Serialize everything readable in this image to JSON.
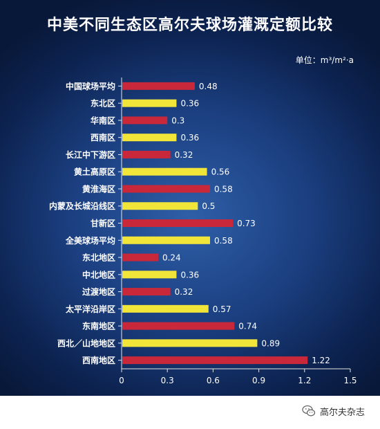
{
  "title": "中美不同生态区高尔夫球场灌溉定额比较",
  "unit": "单位：m³/m²·a",
  "brand": {
    "name": "高尔夫杂志",
    "icon": "wechat-logo-icon"
  },
  "colors": {
    "red": "#c8283a",
    "yellow": "#f2e53a",
    "axis": "#e6e6e6"
  },
  "chart_data": {
    "type": "bar",
    "orientation": "horizontal",
    "title": "中美不同生态区高尔夫球场灌溉定额比较",
    "xlabel": "",
    "ylabel": "",
    "xlim": [
      0,
      1.5
    ],
    "ticks": [
      "0",
      "0.3",
      "0.6",
      "0.9",
      "1.2",
      "1.5"
    ],
    "tick_values": [
      0,
      0.3,
      0.6,
      0.9,
      1.2,
      1.5
    ],
    "grid": false,
    "categories": [
      "中国球场平均",
      "东北区",
      "华南区",
      "西南区",
      "长江中下游区",
      "黄土高原区",
      "黄淮海区",
      "内蒙及长城沿线区",
      "甘新区",
      "全美球场平均",
      "东北地区",
      "中北地区",
      "过渡地区",
      "太平洋沿岸区",
      "东南地区",
      "西北／山地地区",
      "西南地区"
    ],
    "values": [
      0.48,
      0.36,
      0.3,
      0.36,
      0.32,
      0.56,
      0.58,
      0.5,
      0.73,
      0.58,
      0.24,
      0.36,
      0.32,
      0.57,
      0.74,
      0.89,
      1.22
    ],
    "value_labels": [
      "0.48",
      "0.36",
      "0.3",
      "0.36",
      "0.32",
      "0.56",
      "0.58",
      "0.5",
      "0.73",
      "0.58",
      "0.24",
      "0.36",
      "0.32",
      "0.57",
      "0.74",
      "0.89",
      "1.22"
    ],
    "bar_colors": [
      "red",
      "yellow",
      "red",
      "yellow",
      "red",
      "yellow",
      "red",
      "yellow",
      "red",
      "yellow",
      "red",
      "yellow",
      "red",
      "yellow",
      "red",
      "yellow",
      "red"
    ]
  }
}
